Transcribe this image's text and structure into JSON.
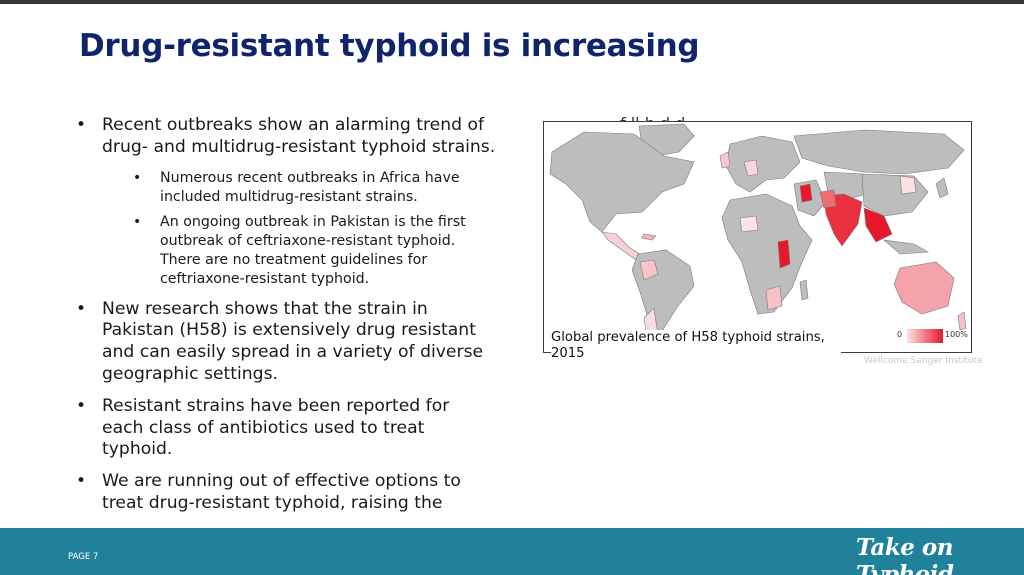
{
  "slide": {
    "title": "Drug-resistant typhoid is increasing",
    "bullets": [
      {
        "text": "Recent outbreaks show an alarming trend of drug- and multidrug-resistant typhoid strains."
      },
      {
        "text": "Numerous recent outbreaks in Africa have included multidrug-resistant strains."
      },
      {
        "text": "An ongoing outbreak in Pakistan is the first outbreak of ceftriaxone-resistant typhoid. There are no treatment guidelines for ceftriaxone-resistant typhoid."
      },
      {
        "text": "New research shows that the strain in Pakistan (H58) is extensively drug resistant and can easily spread in a variety of diverse geographic settings."
      },
      {
        "text": "Resistant strains have been reported for each class of antibiotics used to treat typhoid."
      },
      {
        "text": "We are running out of effective options to treat drug-resistant typhoid, raising the"
      }
    ],
    "hidden_text": "f                                   ll      h    d   d",
    "map": {
      "caption": "Global prevalence of H58 typhoid strains, 2015",
      "legend_min": "0",
      "legend_max": "100%",
      "credit": "Wellcome Sanger Institute",
      "colors": {
        "land": "#bdbdbd",
        "border": "#7a7a7a",
        "high": "#e8182a",
        "mid": "#f06a74",
        "low": "#f9c9cd"
      }
    }
  },
  "footer": {
    "page_label": "PAGE 7",
    "logo_text": "Take on Typhoid",
    "color": "#20819b"
  }
}
